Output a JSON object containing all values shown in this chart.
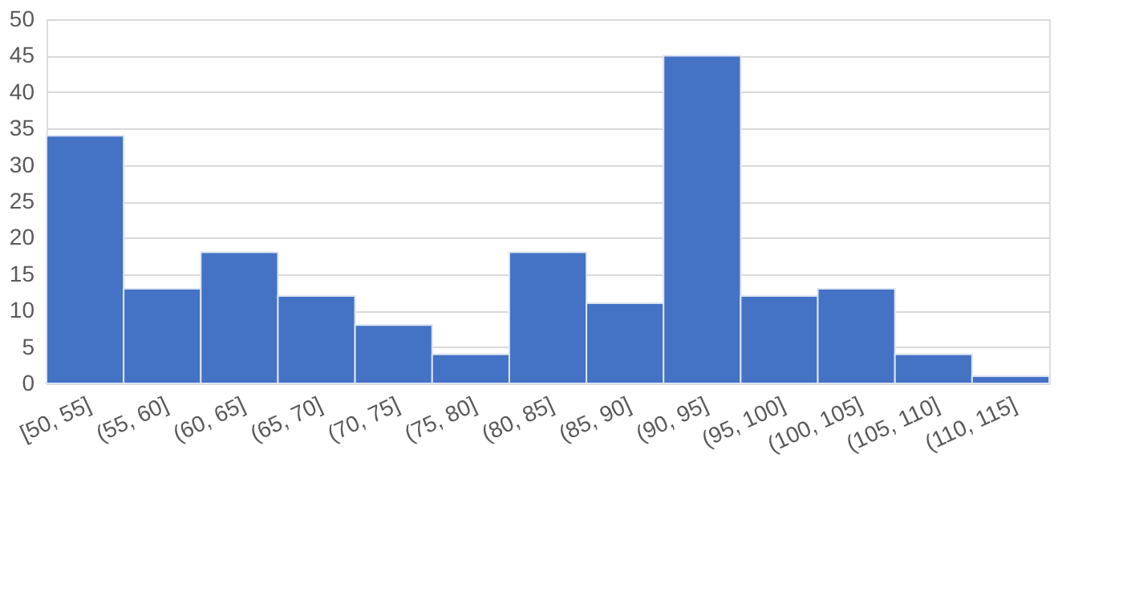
{
  "chart_data": {
    "type": "bar",
    "categories": [
      "[50, 55]",
      "(55, 60]",
      "(60, 65]",
      "(65, 70]",
      "(70, 75]",
      "(75, 80]",
      "(80, 85]",
      "(85, 90]",
      "(90, 95]",
      "(95, 100]",
      "(100, 105]",
      "(105, 110]",
      "(110, 115]"
    ],
    "values": [
      34,
      13,
      18,
      12,
      8,
      4,
      18,
      11,
      45,
      12,
      13,
      4,
      1
    ],
    "color": "#4472c4",
    "ylim": [
      0,
      50
    ],
    "yticks": [
      0,
      5,
      10,
      15,
      20,
      25,
      30,
      35,
      40,
      45,
      50
    ],
    "grid": "y"
  }
}
